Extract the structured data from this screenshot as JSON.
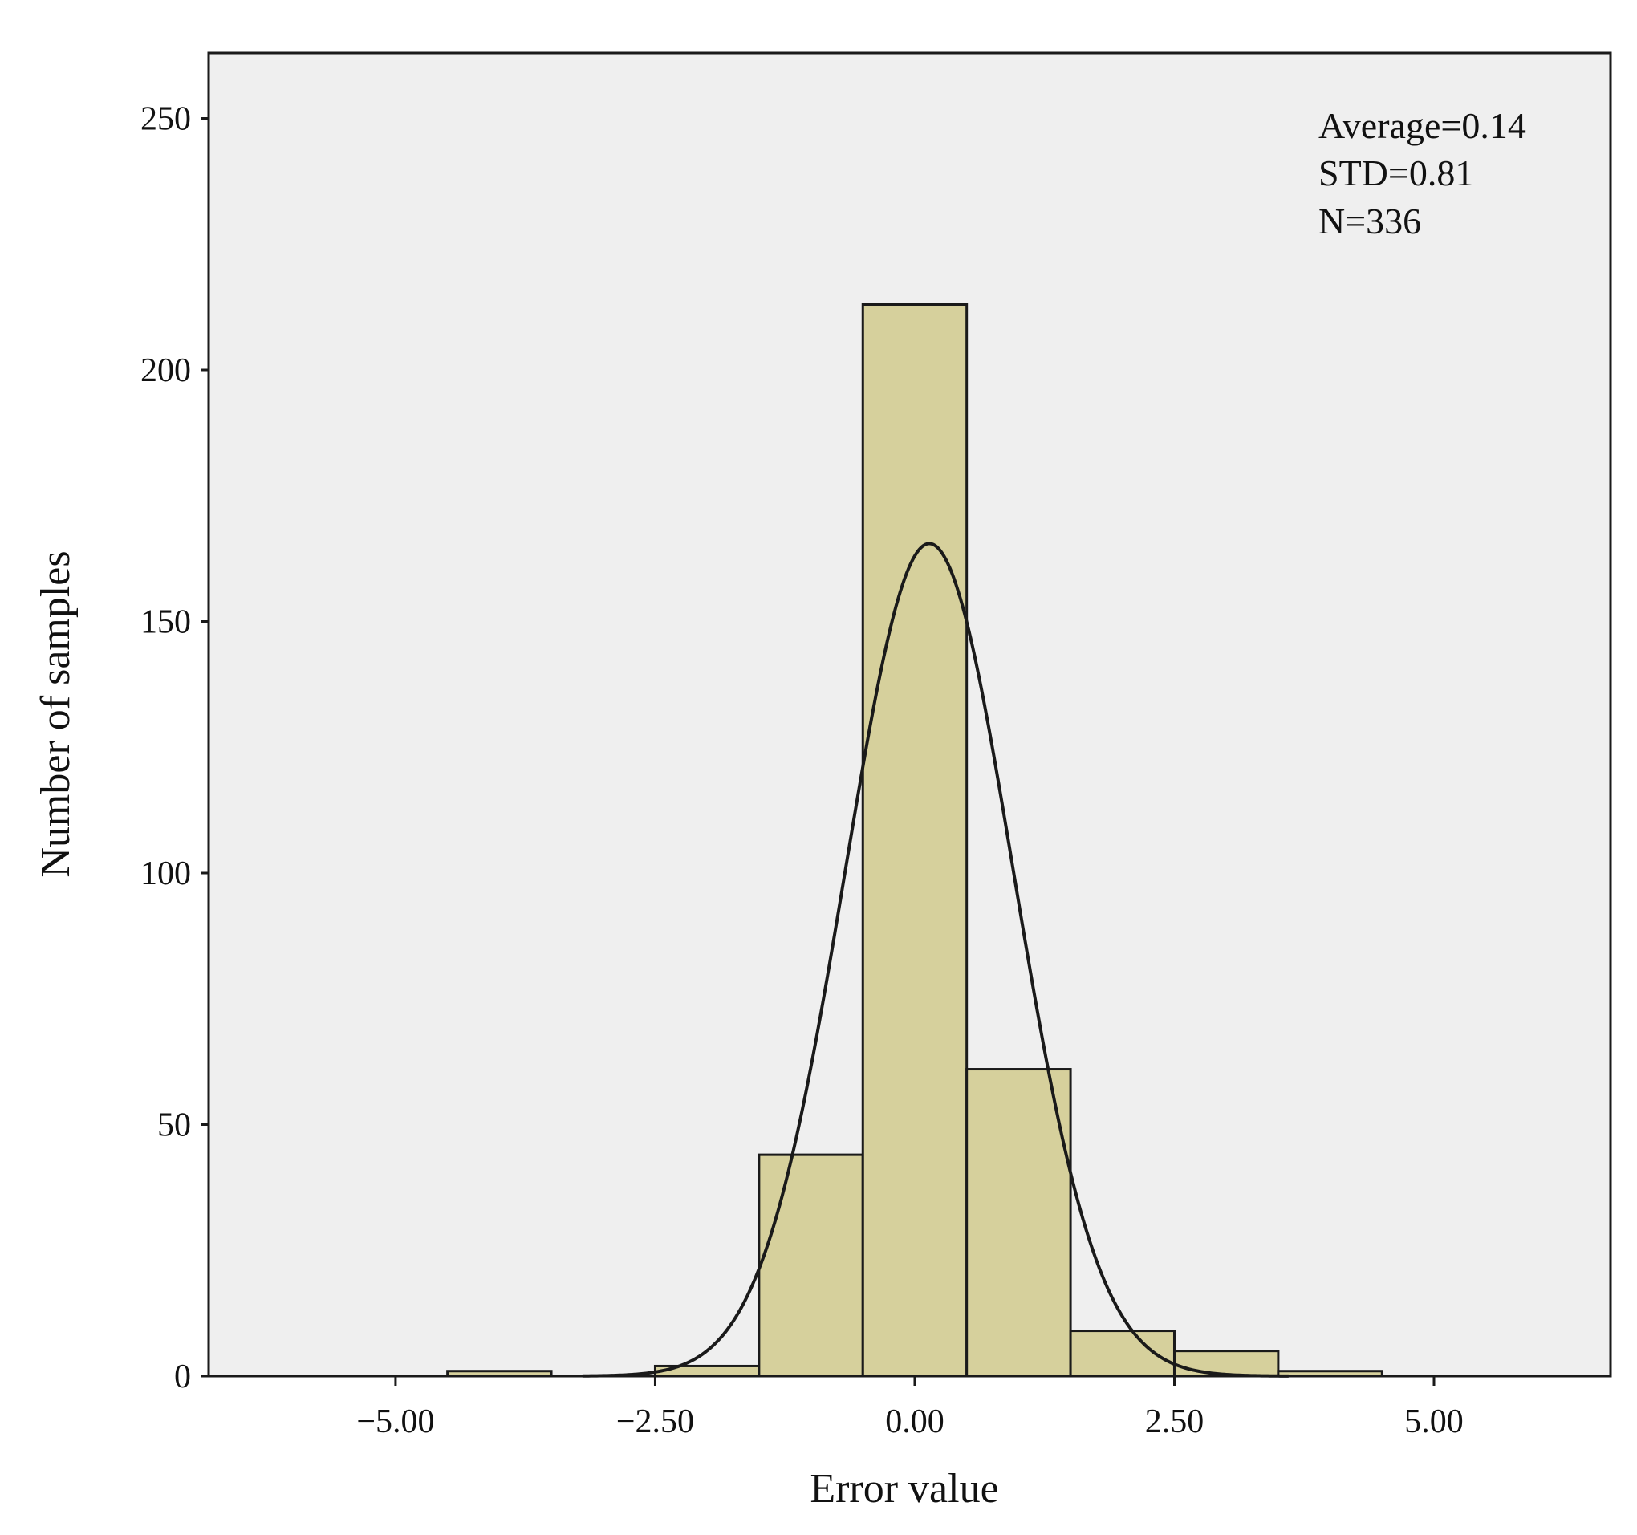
{
  "chart_data": {
    "type": "bar",
    "subtype": "histogram",
    "xlabel": "Error value",
    "ylabel": "Number of samples",
    "xlim": [
      -6.8,
      6.7
    ],
    "ylim": [
      0,
      263
    ],
    "xticks": [
      -5.0,
      -2.5,
      0.0,
      2.5,
      5.0
    ],
    "xtick_labels": [
      "−5.00",
      "−2.50",
      "0.00",
      "2.50",
      "5.00"
    ],
    "yticks": [
      0,
      50,
      100,
      150,
      200,
      250
    ],
    "ytick_labels": [
      "0",
      "50",
      "100",
      "150",
      "200",
      "250"
    ],
    "bin_width": 1.0,
    "bins": [
      {
        "start": -4.5,
        "end": -3.5,
        "count": 1
      },
      {
        "start": -3.5,
        "end": -2.5,
        "count": 0
      },
      {
        "start": -2.5,
        "end": -1.5,
        "count": 2
      },
      {
        "start": -1.5,
        "end": -0.5,
        "count": 44
      },
      {
        "start": -0.5,
        "end": 0.5,
        "count": 213
      },
      {
        "start": 0.5,
        "end": 1.5,
        "count": 61
      },
      {
        "start": 1.5,
        "end": 2.5,
        "count": 9
      },
      {
        "start": 2.5,
        "end": 3.5,
        "count": 5
      },
      {
        "start": 3.5,
        "end": 4.5,
        "count": 1
      }
    ],
    "normal_curve": {
      "mean": 0.14,
      "std": 0.81,
      "n": 336
    },
    "annotations": [
      "Average=0.14",
      "STD=0.81",
      "N=336"
    ],
    "grid": false,
    "colors": {
      "bar_fill": "#d6d09c",
      "bar_stroke": "#1a1a1a",
      "plot_background": "#efefef",
      "curve": "#1a1a1a"
    }
  }
}
